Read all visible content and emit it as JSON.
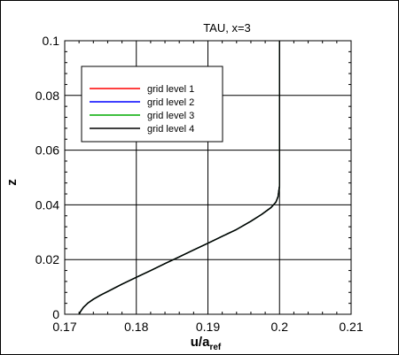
{
  "chart_data": {
    "type": "line",
    "title": "TAU, x=3",
    "xlabel": {
      "main": "u/a",
      "sub": "ref"
    },
    "ylabel": "z",
    "xlim": [
      0.17,
      0.21
    ],
    "ylim": [
      0,
      0.1
    ],
    "xticks": [
      0.17,
      0.18,
      0.19,
      0.2,
      0.21
    ],
    "xtick_labels": [
      "0.17",
      "0.18",
      "0.19",
      "0.2",
      "0.21"
    ],
    "yticks": [
      0,
      0.02,
      0.04,
      0.06,
      0.08,
      0.1
    ],
    "ytick_labels": [
      "0",
      "0.02",
      "0.04",
      "0.06",
      "0.08",
      "0.1"
    ],
    "grid": true,
    "legend_position": "top-left",
    "series": [
      {
        "name": "grid level 1",
        "color": "#ff0000",
        "x": [
          0.172,
          0.1722,
          0.1726,
          0.1732,
          0.174,
          0.175,
          0.1765,
          0.178,
          0.18,
          0.182,
          0.184,
          0.186,
          0.188,
          0.19,
          0.192,
          0.194,
          0.196,
          0.1975,
          0.1988,
          0.1995,
          0.1998,
          0.1999,
          0.2,
          0.2
        ],
        "y": [
          0.0,
          0.001,
          0.0025,
          0.004,
          0.0055,
          0.007,
          0.009,
          0.011,
          0.0135,
          0.016,
          0.0185,
          0.021,
          0.0235,
          0.026,
          0.0285,
          0.031,
          0.034,
          0.0365,
          0.039,
          0.041,
          0.043,
          0.045,
          0.047,
          0.1
        ]
      },
      {
        "name": "grid level 2",
        "color": "#0000ff",
        "x": [
          0.172,
          0.1722,
          0.1726,
          0.1732,
          0.174,
          0.175,
          0.1765,
          0.178,
          0.18,
          0.182,
          0.184,
          0.186,
          0.188,
          0.19,
          0.192,
          0.194,
          0.196,
          0.1975,
          0.1988,
          0.1995,
          0.1998,
          0.1999,
          0.2,
          0.2
        ],
        "y": [
          0.0,
          0.001,
          0.0025,
          0.004,
          0.0055,
          0.007,
          0.009,
          0.011,
          0.0135,
          0.016,
          0.0185,
          0.021,
          0.0235,
          0.026,
          0.0285,
          0.031,
          0.034,
          0.0365,
          0.039,
          0.041,
          0.043,
          0.045,
          0.047,
          0.1
        ]
      },
      {
        "name": "grid level 3",
        "color": "#00aa00",
        "x": [
          0.172,
          0.1722,
          0.1726,
          0.1732,
          0.174,
          0.175,
          0.1765,
          0.178,
          0.18,
          0.182,
          0.184,
          0.186,
          0.188,
          0.19,
          0.192,
          0.194,
          0.196,
          0.1975,
          0.1988,
          0.1995,
          0.1998,
          0.1999,
          0.2,
          0.2,
          0.2,
          0.2
        ],
        "y": [
          0.0,
          0.001,
          0.0025,
          0.004,
          0.0055,
          0.007,
          0.009,
          0.011,
          0.0135,
          0.016,
          0.0185,
          0.021,
          0.0235,
          0.026,
          0.0285,
          0.031,
          0.034,
          0.0365,
          0.039,
          0.041,
          0.043,
          0.045,
          0.047,
          0.055,
          0.064,
          0.1
        ]
      },
      {
        "name": "grid level 4",
        "color": "#000000",
        "x": [
          0.172,
          0.1722,
          0.1726,
          0.1732,
          0.174,
          0.175,
          0.1765,
          0.178,
          0.18,
          0.182,
          0.184,
          0.186,
          0.188,
          0.19,
          0.192,
          0.194,
          0.196,
          0.1975,
          0.1988,
          0.1995,
          0.1998,
          0.1999,
          0.2,
          0.2
        ],
        "y": [
          0.0,
          0.001,
          0.0025,
          0.004,
          0.0055,
          0.007,
          0.009,
          0.011,
          0.0135,
          0.016,
          0.0185,
          0.021,
          0.0235,
          0.026,
          0.0285,
          0.031,
          0.034,
          0.0365,
          0.039,
          0.041,
          0.043,
          0.045,
          0.047,
          0.1
        ]
      }
    ]
  }
}
